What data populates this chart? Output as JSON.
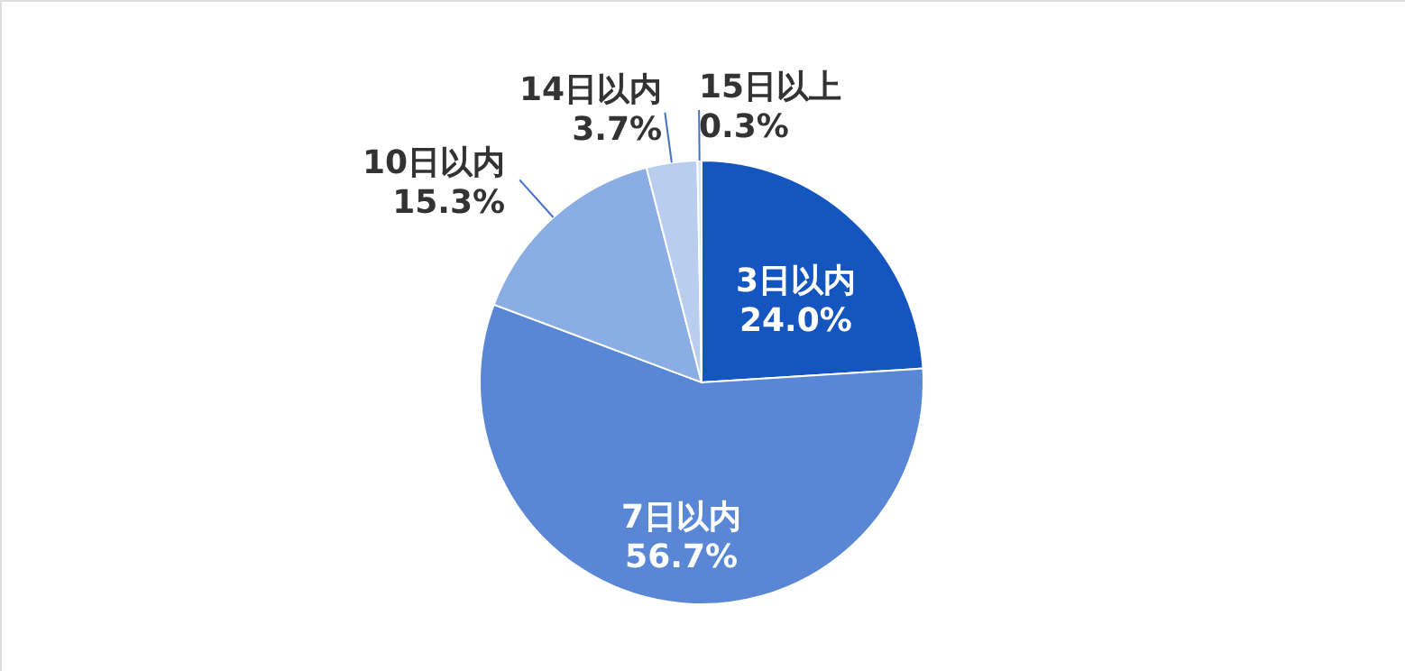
{
  "chart_data": {
    "type": "pie",
    "categories": [
      "3日以内",
      "7日以内",
      "10日以内",
      "14日以内",
      "15日以上"
    ],
    "values": [
      24.0,
      56.7,
      15.3,
      3.7,
      0.3
    ],
    "colors": [
      "#1555bf",
      "#5a87d5",
      "#8aaee3",
      "#b9cdef",
      "#dde6f7"
    ],
    "value_labels": [
      "24.0%",
      "56.7%",
      "15.3%",
      "3.7%",
      "0.3%"
    ]
  }
}
